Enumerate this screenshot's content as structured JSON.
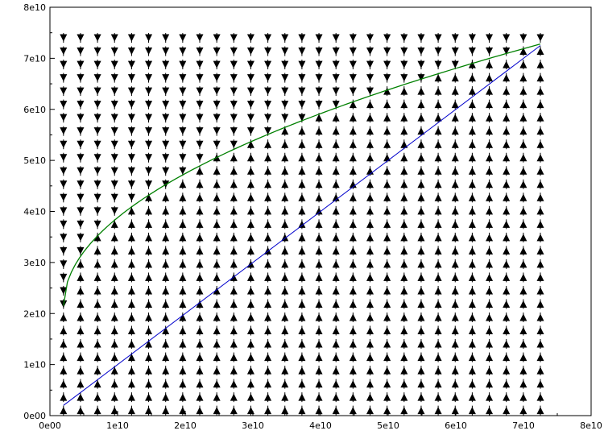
{
  "chart_data": {
    "type": "vector-field",
    "title": "",
    "xlabel": "",
    "ylabel": "",
    "xlim": [
      0,
      80000000000
    ],
    "ylim": [
      0,
      80000000000
    ],
    "xticks": [
      {
        "value": 0,
        "label": "0e00"
      },
      {
        "value": 10000000000,
        "label": "1e10"
      },
      {
        "value": 20000000000,
        "label": "2e10"
      },
      {
        "value": 30000000000,
        "label": "3e10"
      },
      {
        "value": 40000000000,
        "label": "4e10"
      },
      {
        "value": 50000000000,
        "label": "5e10"
      },
      {
        "value": 60000000000,
        "label": "6e10"
      },
      {
        "value": 70000000000,
        "label": "7e10"
      },
      {
        "value": 80000000000,
        "label": "8e10"
      }
    ],
    "yticks": [
      {
        "value": 0,
        "label": "0e00"
      },
      {
        "value": 10000000000,
        "label": "1e10"
      },
      {
        "value": 20000000000,
        "label": "2e10"
      },
      {
        "value": 30000000000,
        "label": "3e10"
      },
      {
        "value": 40000000000,
        "label": "4e10"
      },
      {
        "value": 50000000000,
        "label": "5e10"
      },
      {
        "value": 60000000000,
        "label": "6e10"
      },
      {
        "value": 70000000000,
        "label": "7e10"
      },
      {
        "value": 80000000000,
        "label": "8e10"
      }
    ],
    "grid": false,
    "field": {
      "x_range": [
        2000000000,
        72500000000
      ],
      "y_range": [
        1000000000,
        74000000000
      ],
      "columns": 29,
      "rows": 29,
      "orientation_rule": "arrows point down above the green curve, up below it",
      "marker": "filled triangle arrowhead"
    },
    "series": [
      {
        "type": "line",
        "color": "#0000cc",
        "points": [
          [
            2000000000,
            2000000000
          ],
          [
            72500000000,
            72500000000
          ]
        ]
      },
      {
        "type": "line",
        "color": "#008000",
        "shape": "power",
        "exponent": 0.5,
        "x": [
          2000000000,
          72500000000
        ],
        "y_endpoints": [
          21500000000,
          72800000000
        ]
      }
    ],
    "colors": {
      "axis": "#000000",
      "arrow": "#000000",
      "identity_line": "#0000cc",
      "curve": "#008000"
    }
  }
}
